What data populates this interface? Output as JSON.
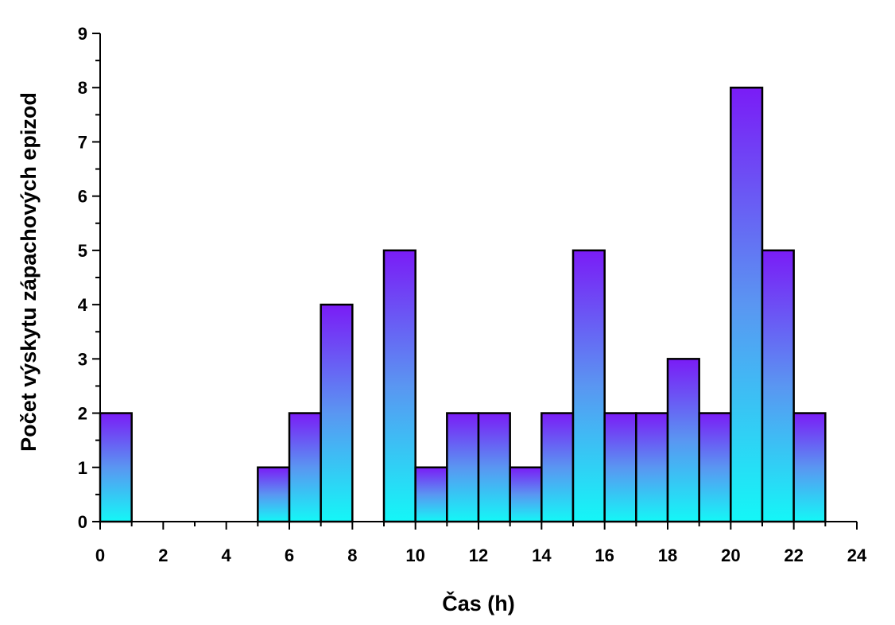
{
  "chart_data": {
    "type": "bar",
    "title": "",
    "xlabel": "Čas (h)",
    "ylabel": "Počet výskytu zápachových epizod",
    "xlim": [
      0,
      24
    ],
    "ylim": [
      0,
      9
    ],
    "x_ticks": [
      "0",
      "2",
      "4",
      "6",
      "8",
      "10",
      "12",
      "14",
      "16",
      "18",
      "20",
      "22",
      "24"
    ],
    "y_ticks": [
      "0",
      "1",
      "2",
      "3",
      "4",
      "5",
      "6",
      "7",
      "8",
      "9"
    ],
    "bin_width": 1,
    "bins_start": [
      0,
      1,
      2,
      3,
      4,
      5,
      6,
      7,
      8,
      9,
      10,
      11,
      12,
      13,
      14,
      15,
      16,
      17,
      18,
      19,
      20,
      21,
      22
    ],
    "values": [
      2,
      0,
      0,
      0,
      0,
      1,
      2,
      4,
      0,
      5,
      1,
      2,
      2,
      1,
      2,
      5,
      2,
      2,
      3,
      2,
      8,
      5,
      2
    ],
    "grid": false,
    "colors": {
      "bar_top": "#7a1cf6",
      "bar_mid": "#5a96f2",
      "bar_bottom": "#14f7f7",
      "edge": "#000000"
    }
  }
}
